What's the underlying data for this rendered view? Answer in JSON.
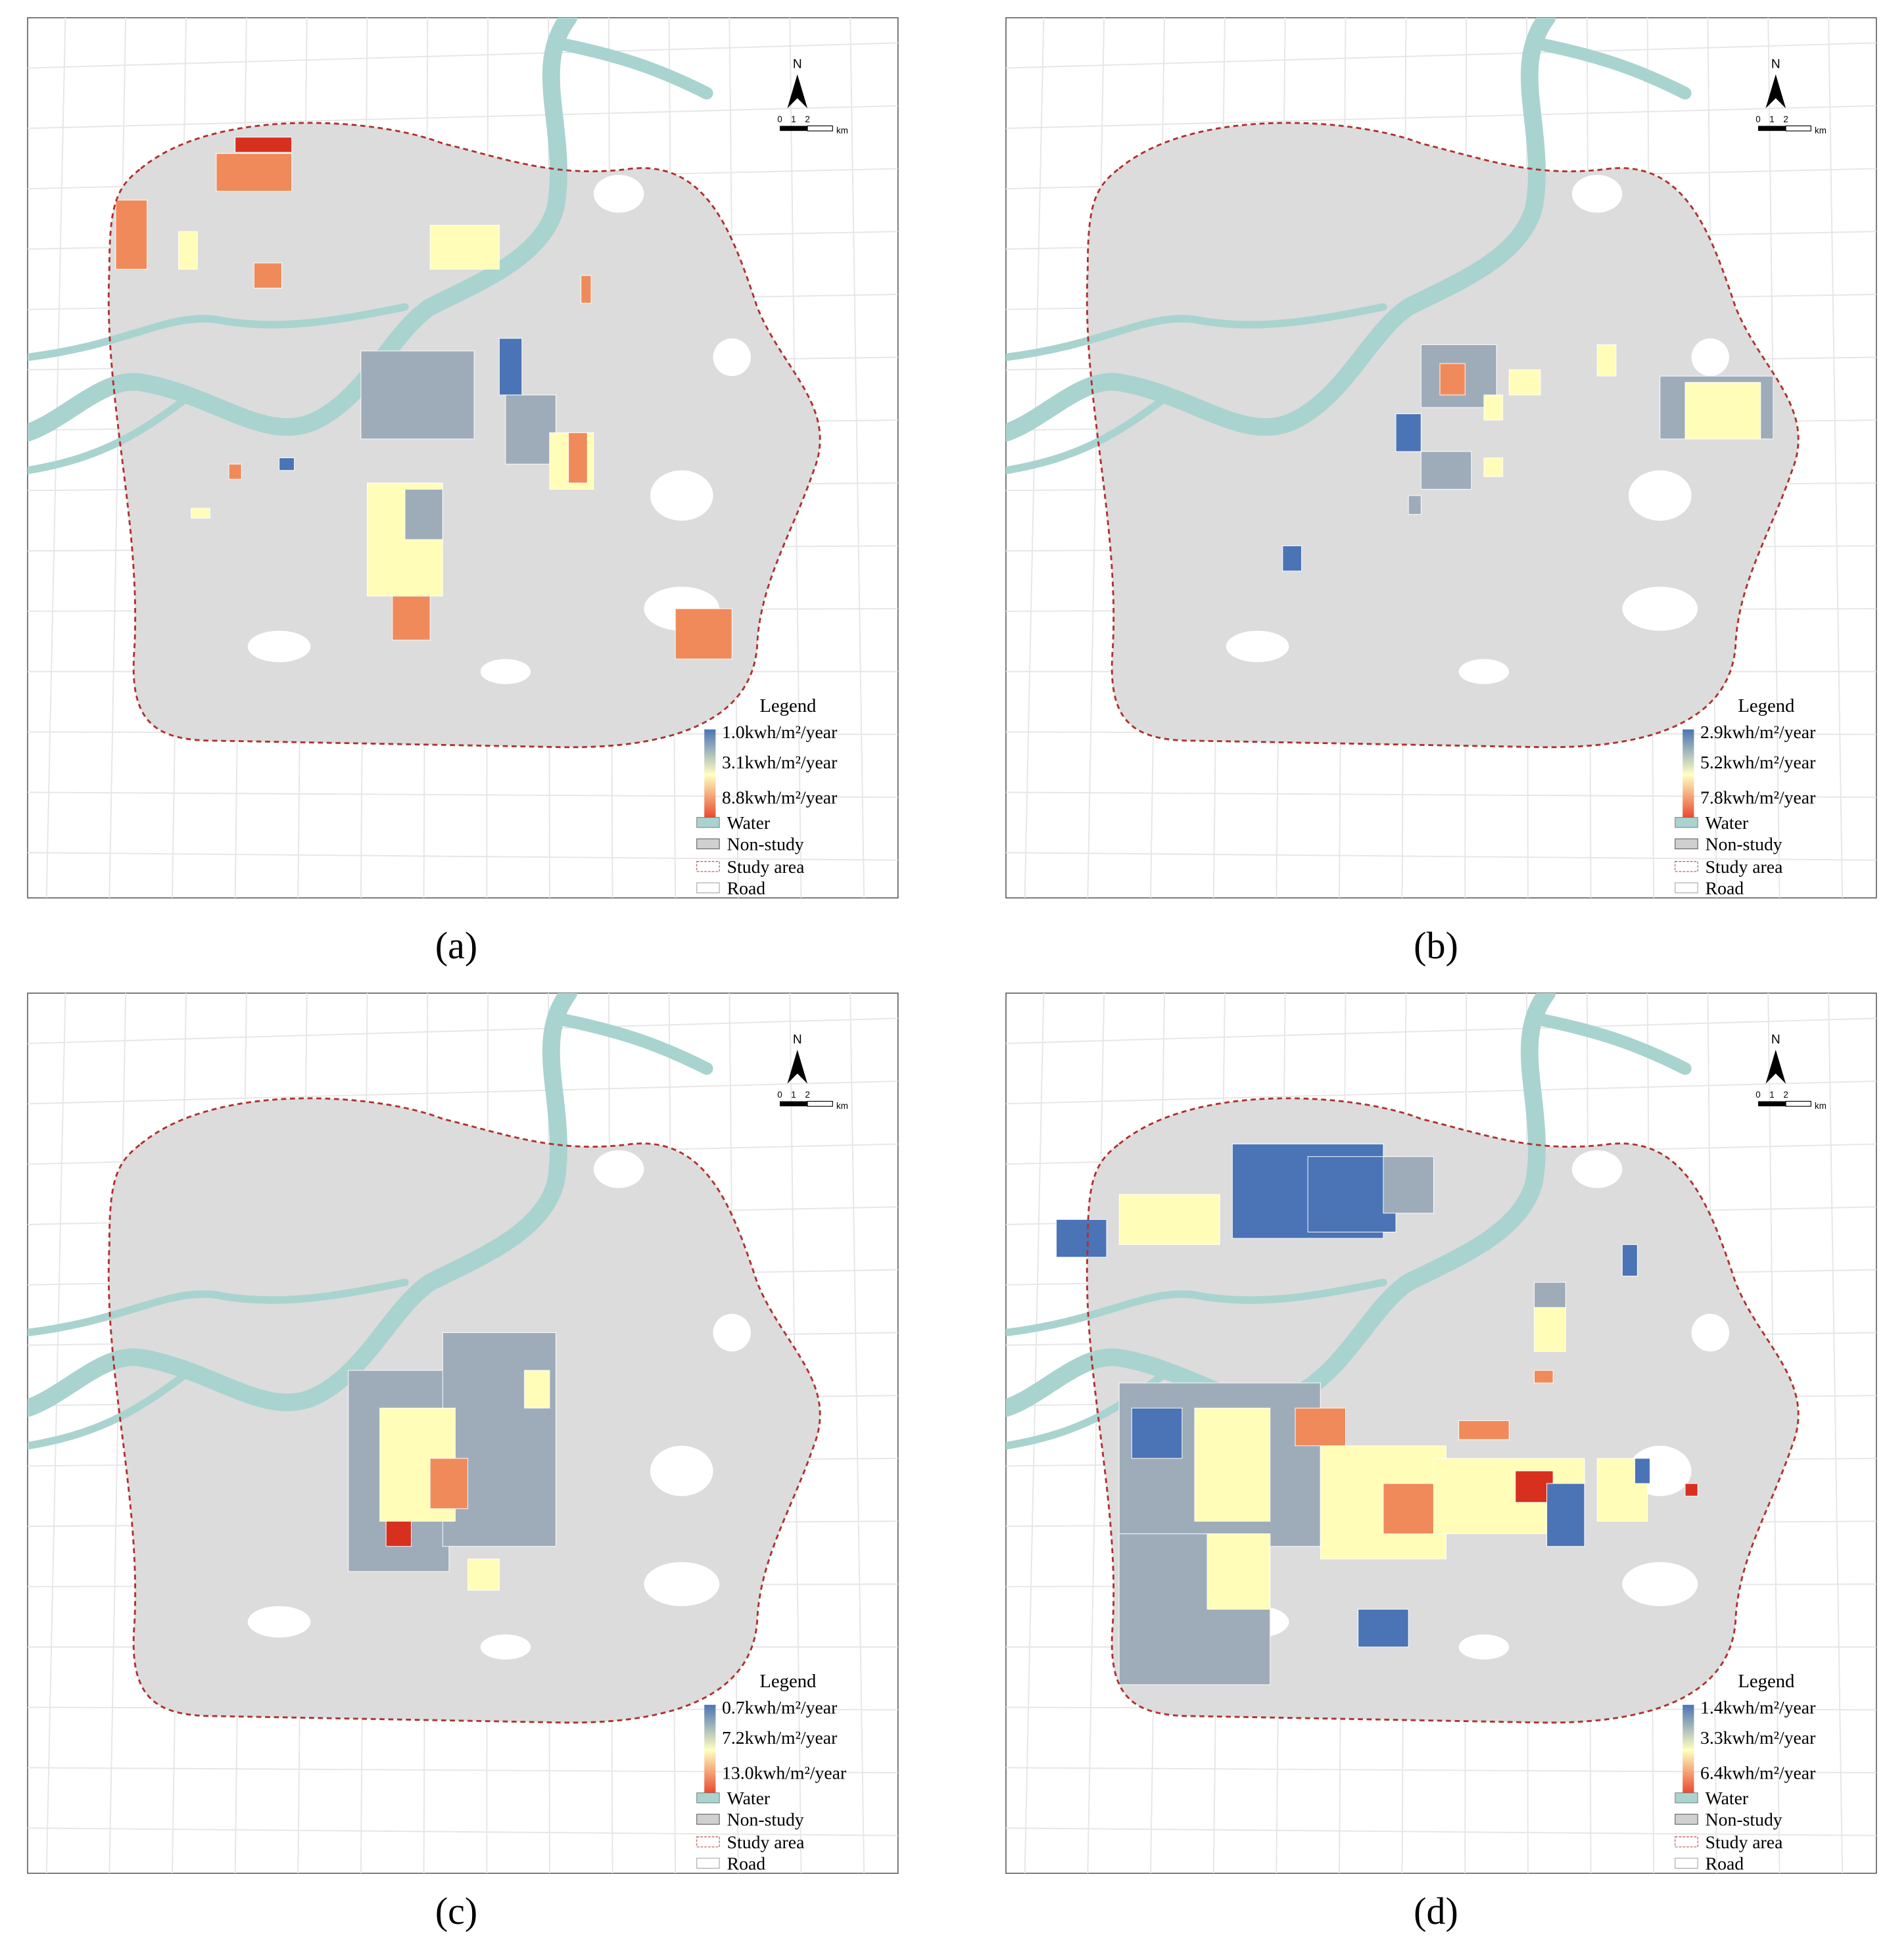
{
  "panels": [
    {
      "label": "(a)",
      "north": "N",
      "scale_bar": [
        "0",
        "1",
        "2",
        "km"
      ],
      "legend": {
        "title": "Legend",
        "scale": [
          "1.0kwh/m²/year",
          "3.1kwh/m²/year",
          "8.8kwh/m²/year"
        ],
        "items": [
          "Water",
          "Non-study",
          "Study area",
          "Road"
        ]
      }
    },
    {
      "label": "(b)",
      "north": "N",
      "scale_bar": [
        "0",
        "1",
        "2",
        "km"
      ],
      "legend": {
        "title": "Legend",
        "scale": [
          "2.9kwh/m²/year",
          "5.2kwh/m²/year",
          "7.8kwh/m²/year"
        ],
        "items": [
          "Water",
          "Non-study",
          "Study area",
          "Road"
        ]
      }
    },
    {
      "label": "(c)",
      "north": "N",
      "scale_bar": [
        "0",
        "1",
        "2",
        "km"
      ],
      "legend": {
        "title": "Legend",
        "scale": [
          "0.7kwh/m²/year",
          "7.2kwh/m²/year",
          "13.0kwh/m²/year"
        ],
        "items": [
          "Water",
          "Non-study",
          "Study area",
          "Road"
        ]
      }
    },
    {
      "label": "(d)",
      "north": "N",
      "scale_bar": [
        "0",
        "1",
        "2",
        "km"
      ],
      "legend": {
        "title": "Legend",
        "scale": [
          "1.4kwh/m²/year",
          "3.3kwh/m²/year",
          "6.4kwh/m²/year"
        ],
        "items": [
          "Water",
          "Non-study",
          "Study area",
          "Road"
        ]
      }
    }
  ]
}
